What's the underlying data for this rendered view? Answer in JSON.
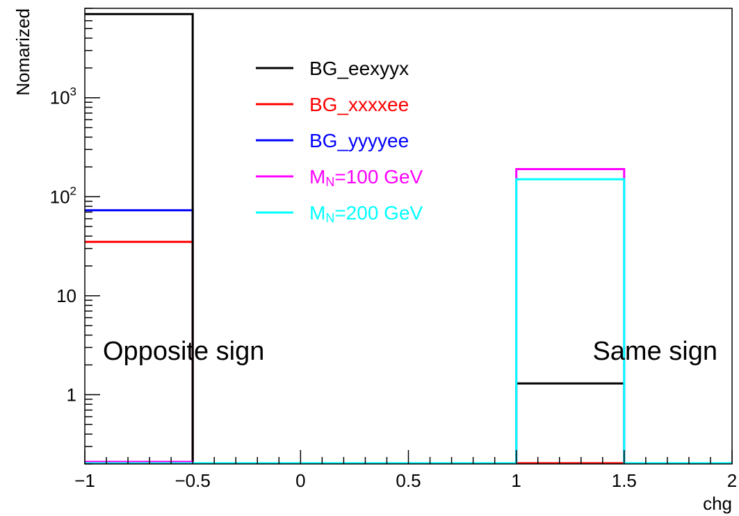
{
  "chart_data": {
    "type": "histogram",
    "xlabel": "chg",
    "ylabel": "Nomarized",
    "xlim": [
      -1,
      2
    ],
    "ylim": [
      0.2,
      8000
    ],
    "yscale": "log",
    "x_ticks": [
      {
        "value": -1,
        "label": "−1"
      },
      {
        "value": -0.5,
        "label": "−0.5"
      },
      {
        "value": 0,
        "label": "0"
      },
      {
        "value": 0.5,
        "label": "0.5"
      },
      {
        "value": 1,
        "label": "1"
      },
      {
        "value": 1.5,
        "label": "1.5"
      },
      {
        "value": 2,
        "label": "2"
      }
    ],
    "y_ticks": [
      {
        "value": 1,
        "label": "1",
        "sup": ""
      },
      {
        "value": 10,
        "label": "10",
        "sup": ""
      },
      {
        "value": 100,
        "label": "10",
        "sup": "2"
      },
      {
        "value": 1000,
        "label": "10",
        "sup": "3"
      }
    ],
    "bin_edges": [
      -1,
      -0.5,
      0,
      0.5,
      1,
      1.5,
      2
    ],
    "series": [
      {
        "name": "BG_eexyyx",
        "color": "#000000",
        "values": [
          7000,
          0,
          0,
          0,
          1.3,
          0
        ]
      },
      {
        "name": "BG_xxxxee",
        "color": "#ff0000",
        "values": [
          35,
          0,
          0,
          0,
          0,
          0
        ]
      },
      {
        "name": "BG_yyyyee",
        "color": "#0000ff",
        "values": [
          73,
          0,
          0,
          0,
          0,
          0
        ]
      },
      {
        "name": "M_N=100 GeV",
        "legend_main": "M",
        "legend_sub": "N",
        "legend_rest": "=100 GeV",
        "color": "#ff00ff",
        "values": [
          0.21,
          0,
          0,
          0,
          190,
          0
        ]
      },
      {
        "name": "M_N=200 GeV",
        "legend_main": "M",
        "legend_sub": "N",
        "legend_rest": "=200 GeV",
        "color": "#00ffff",
        "values": [
          0,
          0,
          0,
          0,
          150,
          0
        ]
      }
    ],
    "annotations": [
      {
        "text": "Opposite sign",
        "position": "left"
      },
      {
        "text": "Same sign",
        "position": "right"
      }
    ],
    "legend_position": "top-center",
    "grid": false
  }
}
